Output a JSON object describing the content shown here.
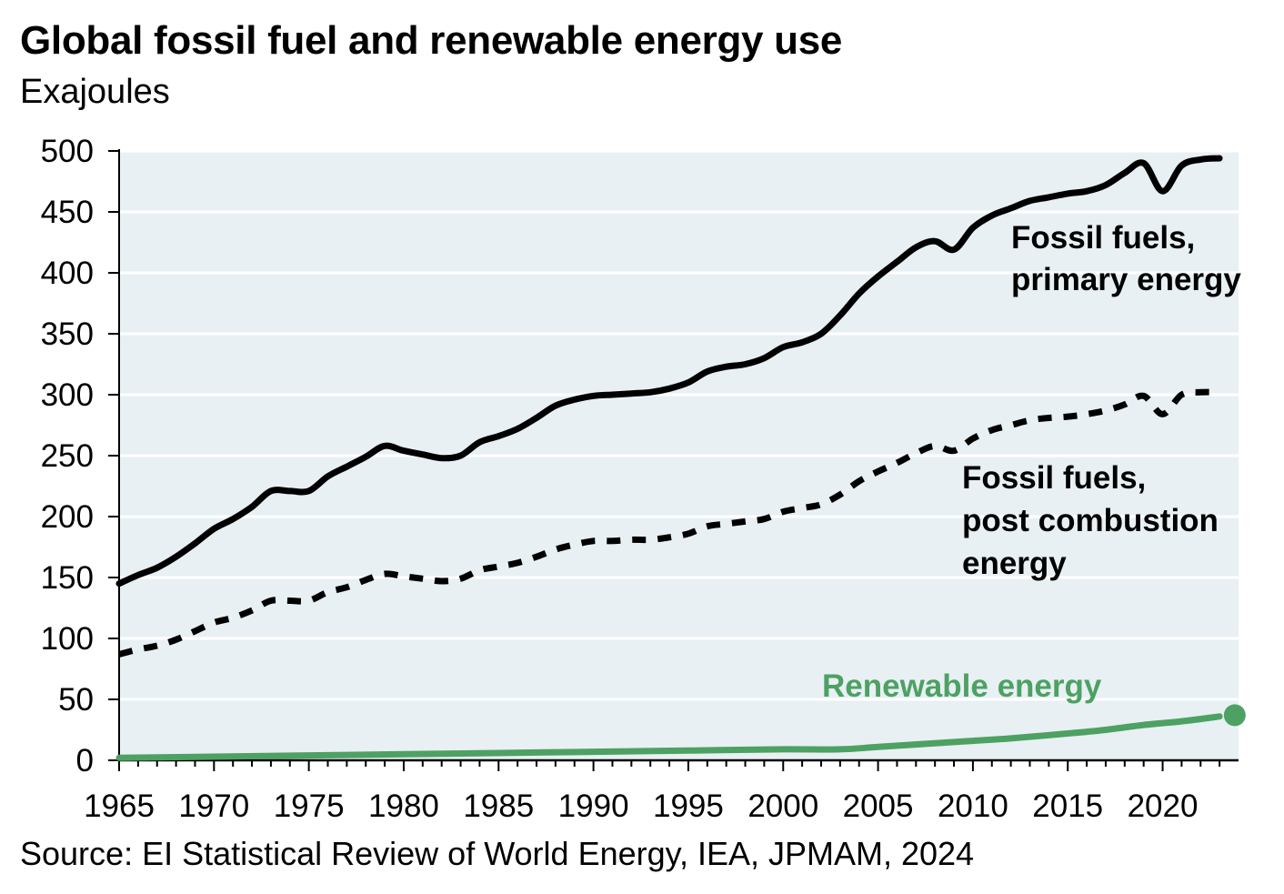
{
  "header": {
    "title": "Global fossil fuel and renewable energy use",
    "subtitle": "Exajoules"
  },
  "footer": {
    "source": "Source: EI Statistical Review of World Energy, IEA, JPMAM, 2024"
  },
  "colors": {
    "plot_background": "#e8f0f4",
    "fossil": "#000000",
    "renewable": "#4da162",
    "grid": "#ffffff"
  },
  "chart_data": {
    "type": "line",
    "title": "Global fossil fuel and renewable energy use",
    "ylabel": "Exajoules",
    "xlabel": "",
    "xlim": [
      1965,
      2024
    ],
    "ylim": [
      0,
      500
    ],
    "x_ticks": [
      1965,
      1970,
      1975,
      1980,
      1985,
      1990,
      1995,
      2000,
      2005,
      2010,
      2015,
      2020
    ],
    "y_ticks": [
      0,
      50,
      100,
      150,
      200,
      250,
      300,
      350,
      400,
      450,
      500
    ],
    "grid": "horizontal",
    "series": [
      {
        "name_lines": [
          "Fossil fuels,",
          "primary energy"
        ],
        "style": "solid",
        "color": "#000000",
        "points": [
          [
            1965,
            145
          ],
          [
            1966,
            152
          ],
          [
            1967,
            158
          ],
          [
            1968,
            167
          ],
          [
            1969,
            178
          ],
          [
            1970,
            190
          ],
          [
            1971,
            198
          ],
          [
            1972,
            208
          ],
          [
            1973,
            221
          ],
          [
            1974,
            221
          ],
          [
            1975,
            221
          ],
          [
            1976,
            233
          ],
          [
            1977,
            241
          ],
          [
            1978,
            249
          ],
          [
            1979,
            258
          ],
          [
            1980,
            254
          ],
          [
            1981,
            251
          ],
          [
            1982,
            248
          ],
          [
            1983,
            250
          ],
          [
            1984,
            261
          ],
          [
            1985,
            266
          ],
          [
            1986,
            272
          ],
          [
            1987,
            281
          ],
          [
            1988,
            291
          ],
          [
            1989,
            296
          ],
          [
            1990,
            299
          ],
          [
            1991,
            300
          ],
          [
            1992,
            301
          ],
          [
            1993,
            302
          ],
          [
            1994,
            305
          ],
          [
            1995,
            310
          ],
          [
            1996,
            319
          ],
          [
            1997,
            323
          ],
          [
            1998,
            325
          ],
          [
            1999,
            330
          ],
          [
            2000,
            339
          ],
          [
            2001,
            343
          ],
          [
            2002,
            350
          ],
          [
            2003,
            365
          ],
          [
            2004,
            383
          ],
          [
            2005,
            397
          ],
          [
            2006,
            409
          ],
          [
            2007,
            421
          ],
          [
            2008,
            426
          ],
          [
            2009,
            419
          ],
          [
            2010,
            437
          ],
          [
            2011,
            447
          ],
          [
            2012,
            453
          ],
          [
            2013,
            459
          ],
          [
            2014,
            462
          ],
          [
            2015,
            465
          ],
          [
            2016,
            467
          ],
          [
            2017,
            472
          ],
          [
            2018,
            482
          ],
          [
            2019,
            490
          ],
          [
            2020,
            467
          ],
          [
            2021,
            488
          ],
          [
            2022,
            493
          ],
          [
            2023,
            494
          ]
        ]
      },
      {
        "name_lines": [
          "Fossil fuels,",
          "post combustion",
          "energy"
        ],
        "style": "dashed",
        "color": "#000000",
        "points": [
          [
            1965,
            87
          ],
          [
            1966,
            91
          ],
          [
            1967,
            94
          ],
          [
            1968,
            99
          ],
          [
            1969,
            106
          ],
          [
            1970,
            113
          ],
          [
            1971,
            117
          ],
          [
            1972,
            123
          ],
          [
            1973,
            131
          ],
          [
            1974,
            131
          ],
          [
            1975,
            131
          ],
          [
            1976,
            138
          ],
          [
            1977,
            142
          ],
          [
            1978,
            148
          ],
          [
            1979,
            153
          ],
          [
            1980,
            151
          ],
          [
            1981,
            149
          ],
          [
            1982,
            147
          ],
          [
            1983,
            149
          ],
          [
            1984,
            156
          ],
          [
            1985,
            159
          ],
          [
            1986,
            162
          ],
          [
            1987,
            167
          ],
          [
            1988,
            173
          ],
          [
            1989,
            177
          ],
          [
            1990,
            180
          ],
          [
            1991,
            180
          ],
          [
            1992,
            181
          ],
          [
            1993,
            181
          ],
          [
            1994,
            183
          ],
          [
            1995,
            186
          ],
          [
            1996,
            192
          ],
          [
            1997,
            194
          ],
          [
            1998,
            196
          ],
          [
            1999,
            198
          ],
          [
            2000,
            204
          ],
          [
            2001,
            207
          ],
          [
            2002,
            210
          ],
          [
            2003,
            218
          ],
          [
            2004,
            229
          ],
          [
            2005,
            237
          ],
          [
            2006,
            244
          ],
          [
            2007,
            252
          ],
          [
            2008,
            258
          ],
          [
            2009,
            254
          ],
          [
            2010,
            264
          ],
          [
            2011,
            271
          ],
          [
            2012,
            275
          ],
          [
            2013,
            279
          ],
          [
            2014,
            281
          ],
          [
            2015,
            282
          ],
          [
            2016,
            284
          ],
          [
            2017,
            287
          ],
          [
            2018,
            292
          ],
          [
            2019,
            299
          ],
          [
            2020,
            284
          ],
          [
            2021,
            300
          ],
          [
            2022,
            302
          ],
          [
            2023,
            302
          ]
        ]
      },
      {
        "name_lines": [
          "Renewable energy"
        ],
        "style": "solid",
        "color": "#4da162",
        "end_marker": [
          2023.8,
          37
        ],
        "points": [
          [
            1965,
            2
          ],
          [
            1970,
            3
          ],
          [
            1975,
            4
          ],
          [
            1980,
            5
          ],
          [
            1985,
            6
          ],
          [
            1990,
            7
          ],
          [
            1995,
            8
          ],
          [
            2000,
            9
          ],
          [
            2003,
            9
          ],
          [
            2005,
            11
          ],
          [
            2008,
            14
          ],
          [
            2010,
            16
          ],
          [
            2012,
            18
          ],
          [
            2015,
            22
          ],
          [
            2017,
            25
          ],
          [
            2019,
            29
          ],
          [
            2021,
            32
          ],
          [
            2023,
            36
          ]
        ]
      }
    ]
  }
}
